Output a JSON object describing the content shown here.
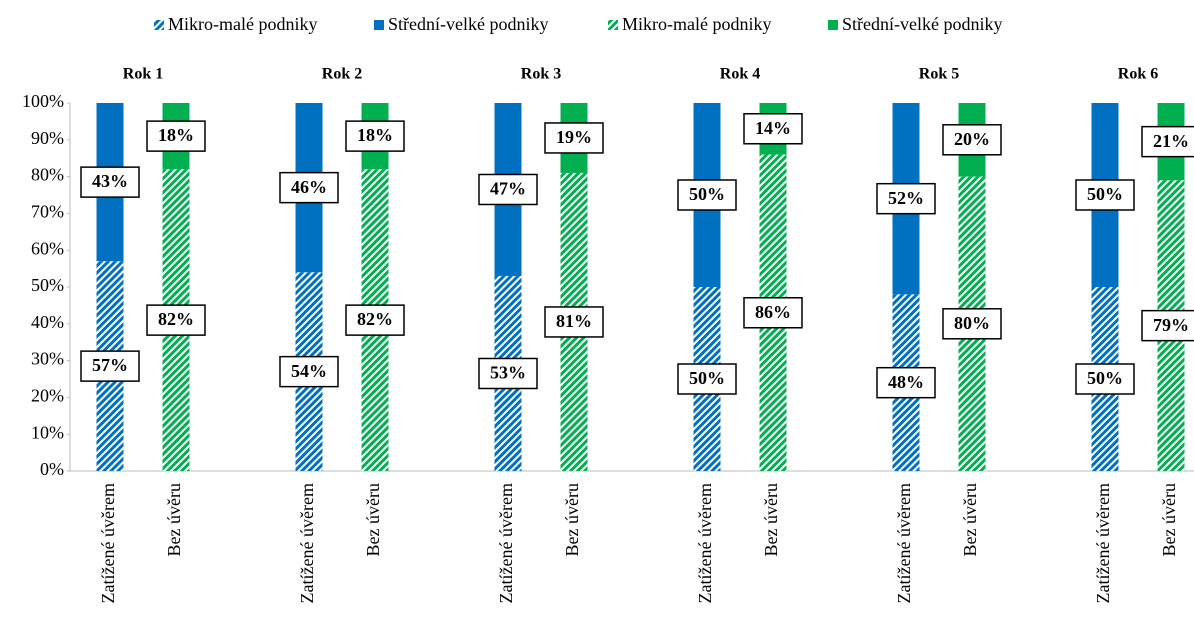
{
  "chart_data": {
    "type": "bar",
    "stacked": true,
    "groups": [
      "Rok 1",
      "Rok 2",
      "Rok 3",
      "Rok 4",
      "Rok 5",
      "Rok 6"
    ],
    "categories": [
      "Zatížené úvěrem",
      "Bez úvěru",
      "Zatížené úvěrem",
      "Bez úvěru",
      "Zatížené úvěrem",
      "Bez úvěru",
      "Zatížené úvěrem",
      "Bez úvěru",
      "Zatížené úvěrem",
      "Bez úvěru",
      "Zatížené úvěrem",
      "Bez úvěru"
    ],
    "series": [
      {
        "name": "Mikro-malé podniky",
        "color": "#0070c0",
        "hatched": true,
        "values": [
          57,
          null,
          54,
          null,
          53,
          null,
          50,
          null,
          48,
          null,
          50,
          null
        ],
        "value_labels": [
          "57%",
          null,
          "54%",
          null,
          "53%",
          null,
          "50%",
          null,
          "48%",
          null,
          "50%",
          null
        ]
      },
      {
        "name": "Střední-velké podniky",
        "color": "#0070c0",
        "hatched": false,
        "values": [
          43,
          null,
          46,
          null,
          47,
          null,
          50,
          null,
          52,
          null,
          50,
          null
        ],
        "value_labels": [
          "43%",
          null,
          "46%",
          null,
          "47%",
          null,
          "50%",
          null,
          "52%",
          null,
          "50%",
          null
        ]
      },
      {
        "name": "Mikro-malé podniky",
        "color": "#00b050",
        "hatched": true,
        "values": [
          null,
          82,
          null,
          82,
          null,
          81,
          null,
          86,
          null,
          80,
          null,
          79
        ],
        "value_labels": [
          null,
          "82%",
          null,
          "82%",
          null,
          "81%",
          null,
          "86%",
          null,
          "80%",
          null,
          "79%"
        ]
      },
      {
        "name": "Střední-velké podniky",
        "color": "#00b050",
        "hatched": false,
        "values": [
          null,
          18,
          null,
          18,
          null,
          19,
          null,
          14,
          null,
          20,
          null,
          21
        ],
        "value_labels": [
          null,
          "18%",
          null,
          "18%",
          null,
          "19%",
          null,
          "14%",
          null,
          "20%",
          null,
          "21%"
        ]
      }
    ],
    "ylim": [
      0,
      100
    ],
    "yticks": [
      {
        "value": 0,
        "label": "0%"
      },
      {
        "value": 10,
        "label": "10%"
      },
      {
        "value": 20,
        "label": "20%"
      },
      {
        "value": 30,
        "label": "30%"
      },
      {
        "value": 40,
        "label": "40%"
      },
      {
        "value": 50,
        "label": "50%"
      },
      {
        "value": 60,
        "label": "60%"
      },
      {
        "value": 70,
        "label": "70%"
      },
      {
        "value": 80,
        "label": "80%"
      },
      {
        "value": 90,
        "label": "90%"
      },
      {
        "value": 100,
        "label": "100%"
      }
    ],
    "legend": "top"
  }
}
